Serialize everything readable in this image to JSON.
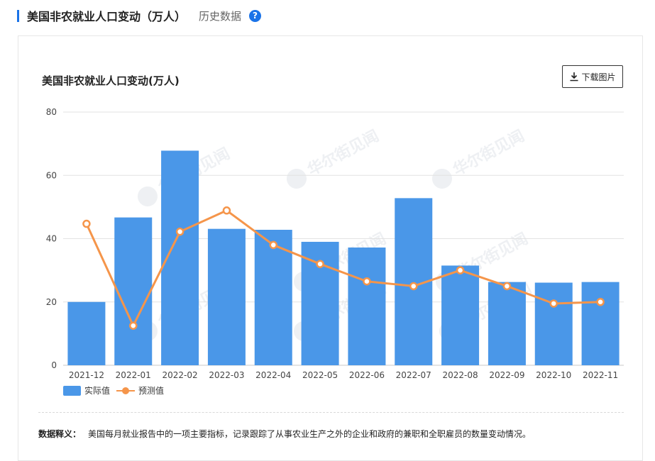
{
  "header": {
    "title": "美国非农就业人口变动（万人）",
    "subtitle": "历史数据",
    "help_icon": "?"
  },
  "panel": {
    "download_label": "下载图片",
    "description_label": "数据释义：",
    "description_text": "美国每月就业报告中的一项主要指标，记录跟踪了从事农业生产之外的企业和政府的兼职和全职雇员的数量变动情况。",
    "watermark": "华尔街见闻"
  },
  "colors": {
    "accent": "#1a73e8",
    "bar": "#4a97e8",
    "line": "#f5954a"
  },
  "chart_data": {
    "type": "bar",
    "title": "美国非农就业人口变动(万人)",
    "categories": [
      "2021-12",
      "2022-01",
      "2022-02",
      "2022-03",
      "2022-04",
      "2022-05",
      "2022-06",
      "2022-07",
      "2022-08",
      "2022-09",
      "2022-10",
      "2022-11"
    ],
    "series": [
      {
        "name": "实际值",
        "type": "bar",
        "values": [
          20,
          46.7,
          67.8,
          43.1,
          42.8,
          39,
          37.2,
          52.8,
          31.5,
          26.3,
          26.1,
          26.3
        ]
      },
      {
        "name": "预测值",
        "type": "line",
        "values": [
          44.7,
          12.5,
          42.2,
          48.9,
          38,
          32,
          26.5,
          25,
          30,
          25,
          19.5,
          20
        ]
      }
    ],
    "ylim": [
      0,
      80
    ],
    "yticks": [
      0,
      20,
      40,
      60,
      80
    ],
    "grid": true,
    "legend_position": "bottom-left",
    "xlabel": "",
    "ylabel": ""
  }
}
